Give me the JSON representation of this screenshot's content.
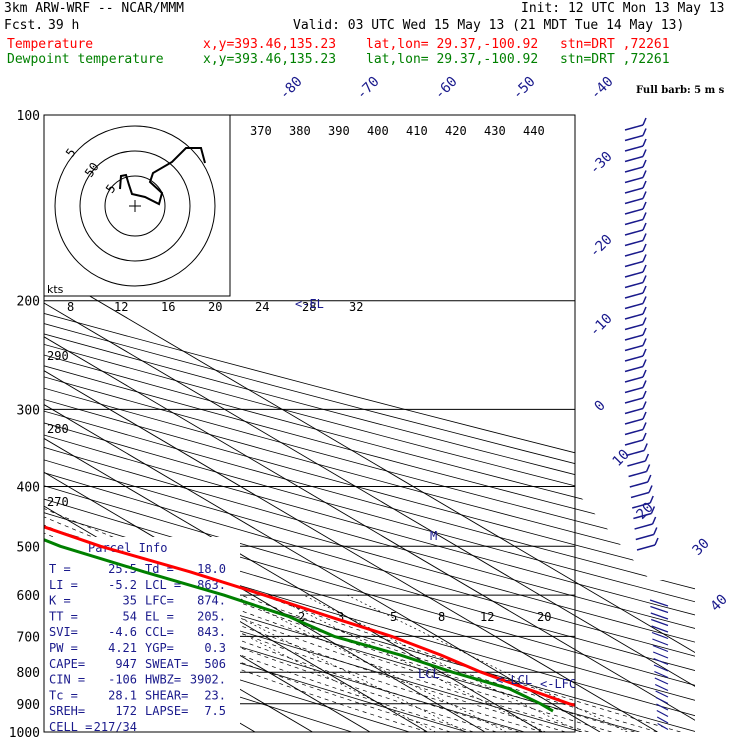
{
  "header": {
    "model": "3km ARW-WRF -- NCAR/MMM",
    "init": "Init: 12 UTC Mon 13 May 13",
    "fcst_label": "Fcst.",
    "fcst_value": "39 h",
    "valid": "Valid: 03 UTC Wed 15 May 13 (21 MDT Tue 14 May 13)",
    "temp_label": "Temperature",
    "dew_label": "Dewpoint temperature",
    "xy": "x,y=393.46,135.23",
    "latlon": "lat,lon= 29.37,-100.92",
    "stn": "stn=DRT ,72261"
  },
  "colors": {
    "temperature": "#ff0000",
    "dewpoint": "#008000",
    "info": "#1a1a8c"
  },
  "chart_data": {
    "type": "line",
    "title": "",
    "ylabel": "",
    "xlabel": "",
    "y_scale": "log",
    "pressure_levels": [
      100,
      200,
      300,
      400,
      500,
      600,
      700,
      800,
      900,
      1000
    ],
    "isotherm_labels": [
      "-80",
      "-70",
      "-60",
      "-50",
      "-40",
      "-30",
      "-20",
      "-10",
      "0",
      "10",
      "20",
      "30",
      "40"
    ],
    "theta_labels": [
      "370",
      "380",
      "390",
      "400",
      "410",
      "420",
      "430",
      "440"
    ],
    "theta_left_labels": [
      "290",
      "280",
      "270"
    ],
    "mixing_ratio_labels": [
      "2",
      "3",
      "5",
      "8",
      "12",
      "20"
    ],
    "hodograph": {
      "axis_label": "kts",
      "speed_labels": [
        "8",
        "12",
        "16",
        "20",
        "24",
        "28",
        "32"
      ],
      "ring_labels": [
        "5",
        "50",
        "5"
      ]
    },
    "barb_legend": "Full barb: 5 m s",
    "annotations": {
      "lcl": "LCL",
      "lcl2": "<-LCL",
      "lfc": "<-LFC",
      "el": "<-EL",
      "m": "M"
    },
    "series": [
      {
        "name": "Temperature",
        "color": "#ff0000",
        "points": [
          [
            -58,
            100
          ],
          [
            -60,
            110
          ],
          [
            -62,
            125
          ],
          [
            -61,
            150
          ],
          [
            -58,
            175
          ],
          [
            -55,
            200
          ],
          [
            -49,
            250
          ],
          [
            -42,
            300
          ],
          [
            -33,
            350
          ],
          [
            -23,
            400
          ],
          [
            -18,
            450
          ],
          [
            -12,
            500
          ],
          [
            -4,
            550
          ],
          [
            2,
            600
          ],
          [
            7,
            650
          ],
          [
            12,
            700
          ],
          [
            15,
            750
          ],
          [
            17,
            800
          ],
          [
            20,
            850
          ],
          [
            23,
            900
          ],
          [
            25.5,
            925
          ]
        ]
      },
      {
        "name": "Dewpoint temperature",
        "color": "#008000",
        "points": [
          [
            -88,
            100
          ],
          [
            -87,
            110
          ],
          [
            -86,
            125
          ],
          [
            -86,
            150
          ],
          [
            -80,
            175
          ],
          [
            -72,
            200
          ],
          [
            -68,
            250
          ],
          [
            -55,
            300
          ],
          [
            -52,
            350
          ],
          [
            -32,
            400
          ],
          [
            -23,
            450
          ],
          [
            -19,
            500
          ],
          [
            -12,
            550
          ],
          [
            -5,
            600
          ],
          [
            0,
            650
          ],
          [
            2,
            700
          ],
          [
            8,
            750
          ],
          [
            12,
            800
          ],
          [
            17,
            850
          ],
          [
            18,
            900
          ],
          [
            18,
            925
          ]
        ]
      }
    ],
    "parcel_info": {
      "title": "Parcel Info",
      "rows": [
        [
          "T  =",
          "25.5",
          "Td =",
          "18.0"
        ],
        [
          "LI =",
          "-5.2",
          "LCL =",
          "863."
        ],
        [
          "K  =",
          "35",
          "LFC=",
          "874."
        ],
        [
          "TT =",
          "54",
          "EL =",
          "205."
        ],
        [
          "SVI=",
          "-4.6",
          "CCL=",
          "843."
        ],
        [
          "PW =",
          "4.21",
          "YGP=",
          "0.3"
        ],
        [
          "CAPE=",
          "947",
          "SWEAT=",
          "506"
        ],
        [
          "CIN =",
          "-106",
          "HWBZ=",
          "3902."
        ],
        [
          "Tc =",
          "28.1",
          "SHEAR=",
          "23."
        ],
        [
          "SREH=",
          "172",
          "LAPSE=",
          "7.5"
        ],
        [
          "CELL =",
          "217/34",
          "",
          ""
        ]
      ]
    }
  }
}
